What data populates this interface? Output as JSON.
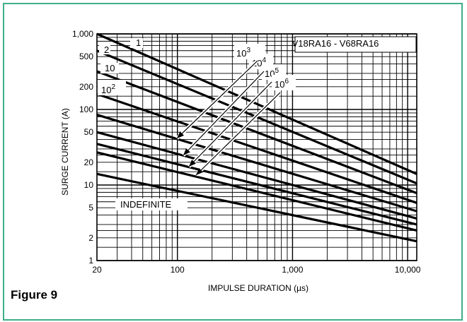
{
  "figure_label": "Figure 9",
  "chart_data": {
    "type": "line",
    "title": "V18RA16 - V68RA16",
    "xlabel": "IMPULSE DURATION (µs)",
    "ylabel": "SURGE CURRENT (A)",
    "x_scale": "log",
    "y_scale": "log",
    "xlim": [
      20,
      12000
    ],
    "ylim": [
      1,
      1000
    ],
    "x_ticks": [
      {
        "value": 20,
        "label": "20"
      },
      {
        "value": 100,
        "label": "100"
      },
      {
        "value": 1000,
        "label": "1,000"
      },
      {
        "value": 10000,
        "label": "10,000"
      }
    ],
    "y_ticks": [
      {
        "value": 1000,
        "label": "1,000"
      },
      {
        "value": 500,
        "label": "500"
      },
      {
        "value": 200,
        "label": "200"
      },
      {
        "value": 100,
        "label": "100"
      },
      {
        "value": 50,
        "label": "50"
      },
      {
        "value": 20,
        "label": "20"
      },
      {
        "value": 10,
        "label": "10"
      },
      {
        "value": 5,
        "label": "5"
      },
      {
        "value": 2,
        "label": "2"
      },
      {
        "value": 1,
        "label": "1"
      }
    ],
    "grid": true,
    "series": [
      {
        "name": "1",
        "x": [
          20,
          12000
        ],
        "y": [
          1000,
          14
        ]
      },
      {
        "name": "2",
        "x": [
          20,
          12000
        ],
        "y": [
          600,
          10.5
        ]
      },
      {
        "name": "10",
        "x": [
          20,
          12000
        ],
        "y": [
          320,
          7.8
        ]
      },
      {
        "name": "10²",
        "x": [
          20,
          12000
        ],
        "y": [
          160,
          5.8
        ]
      },
      {
        "name": "10³",
        "x": [
          20,
          12000
        ],
        "y": [
          85,
          4.5
        ]
      },
      {
        "name": "10⁴",
        "x": [
          20,
          12000
        ],
        "y": [
          50,
          3.6
        ]
      },
      {
        "name": "10⁵",
        "x": [
          20,
          12000
        ],
        "y": [
          35,
          3.0
        ]
      },
      {
        "name": "10⁶",
        "x": [
          20,
          12000
        ],
        "y": [
          27,
          2.5
        ]
      },
      {
        "name": "INDEFINITE",
        "x": [
          20,
          12000
        ],
        "y": [
          14,
          1.8
        ]
      }
    ],
    "line_labels": [
      {
        "series": "1",
        "text": "1",
        "sup": ""
      },
      {
        "series": "2",
        "text": "2",
        "sup": ""
      },
      {
        "series": "10",
        "text": "10",
        "sup": ""
      },
      {
        "series": "10²",
        "text": "10",
        "sup": "2"
      },
      {
        "series": "10³",
        "text": "10",
        "sup": "3"
      },
      {
        "series": "10⁴",
        "text": "10",
        "sup": "4"
      },
      {
        "series": "10⁵",
        "text": "10",
        "sup": "5"
      },
      {
        "series": "10⁶",
        "text": "10",
        "sup": "6"
      },
      {
        "series": "INDEFINITE",
        "text": "INDEFINITE",
        "sup": ""
      }
    ]
  }
}
